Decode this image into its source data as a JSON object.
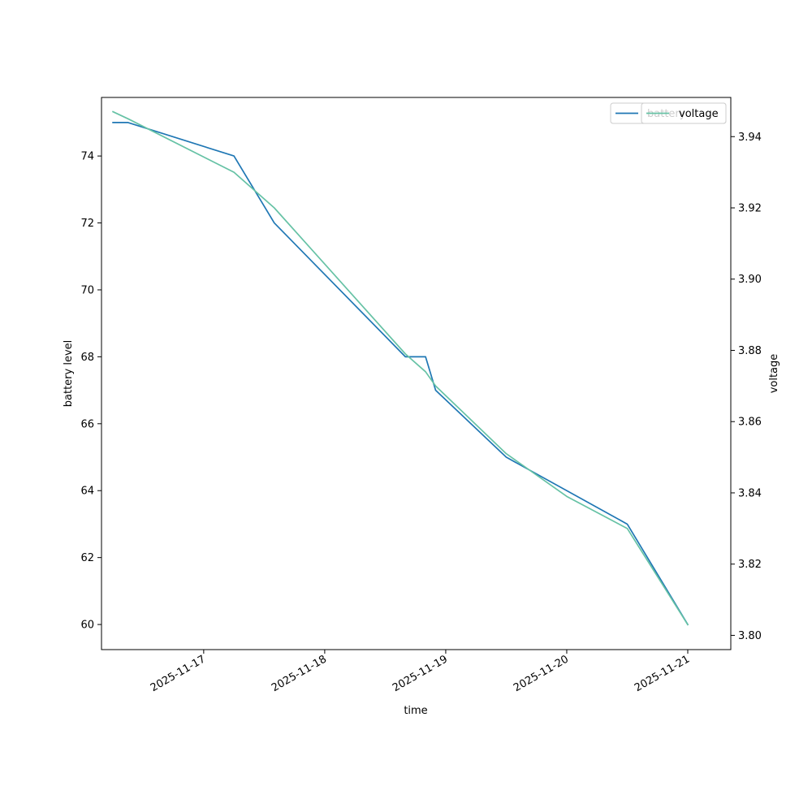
{
  "chart_data": {
    "type": "line",
    "xlabel": "time",
    "ylabel_left": "battery level",
    "ylabel_right": "voltage",
    "x_ticks": [
      "2025-11-17",
      "2025-11-18",
      "2025-11-19",
      "2025-11-20",
      "2025-11-21"
    ],
    "y_left_ticks": [
      "60",
      "62",
      "64",
      "66",
      "68",
      "70",
      "72",
      "74"
    ],
    "y_right_ticks": [
      "3.80",
      "3.82",
      "3.84",
      "3.86",
      "3.88",
      "3.90",
      "3.92",
      "3.94"
    ],
    "xlim": [
      "2025-11-16 03:44",
      "2025-11-21 08:32"
    ],
    "ylim_left": [
      59.25,
      75.75
    ],
    "ylim_right": [
      3.796,
      3.951
    ],
    "grid": false,
    "colors": {
      "battery": "#1f77b4",
      "voltage": "#66c2a5"
    },
    "series": [
      {
        "name": "battery",
        "axis": "left",
        "points": [
          [
            "2025-11-16 06:00",
            75
          ],
          [
            "2025-11-16 08:00",
            75
          ],
          [
            "2025-11-16 09:00",
            75
          ],
          [
            "2025-11-17 06:00",
            74
          ],
          [
            "2025-11-17 14:00",
            72
          ],
          [
            "2025-11-18 16:00",
            68
          ],
          [
            "2025-11-18 20:00",
            68
          ],
          [
            "2025-11-18 22:00",
            67
          ],
          [
            "2025-11-19 12:00",
            65
          ],
          [
            "2025-11-20 12:00",
            63
          ],
          [
            "2025-11-21 00:00",
            60
          ]
        ]
      },
      {
        "name": "voltage",
        "axis": "right",
        "points": [
          [
            "2025-11-16 06:00",
            3.947
          ],
          [
            "2025-11-16 09:00",
            3.945
          ],
          [
            "2025-11-17 06:00",
            3.93
          ],
          [
            "2025-11-17 14:00",
            3.92
          ],
          [
            "2025-11-18 16:00",
            3.879
          ],
          [
            "2025-11-18 20:00",
            3.874
          ],
          [
            "2025-11-18 22:00",
            3.87
          ],
          [
            "2025-11-19 12:00",
            3.851
          ],
          [
            "2025-11-20 00:00",
            3.839
          ],
          [
            "2025-11-20 12:00",
            3.83
          ],
          [
            "2025-11-21 00:00",
            3.803
          ]
        ]
      }
    ],
    "legends": [
      {
        "location": "top-right",
        "entries": [
          "battery"
        ]
      },
      {
        "location": "top-right",
        "entries": [
          "voltage"
        ]
      }
    ]
  }
}
